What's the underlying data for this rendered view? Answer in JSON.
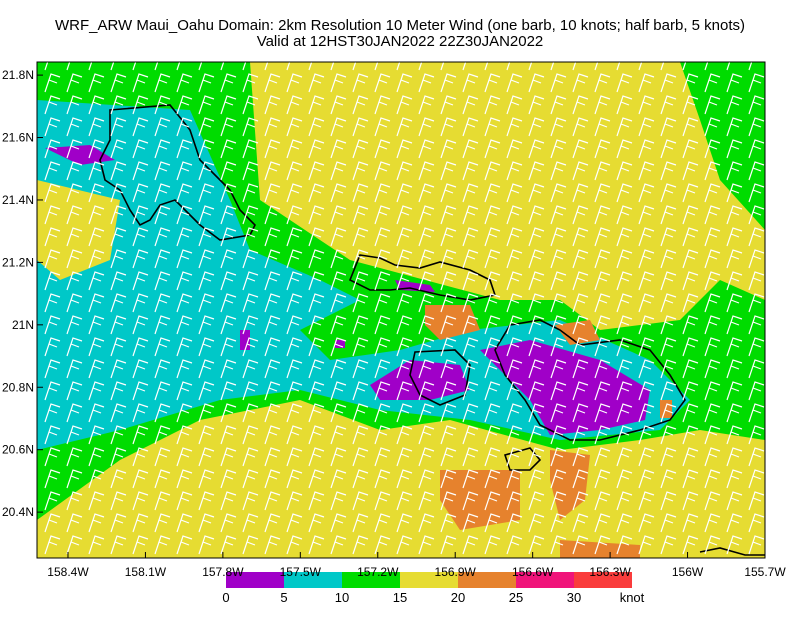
{
  "title": "WRF_ARW Maui_Oahu Domain: 2km Resolution  10 Meter Wind (one barb, 10 knots; half barb, 5 knots)",
  "subtitle": "Valid at 12HST30JAN2022  22Z30JAN2022",
  "xlim": [
    -158.52,
    -155.7
  ],
  "ylim": [
    20.253,
    21.842
  ],
  "xticks": [
    {
      "value": -158.4,
      "label": "158.4W"
    },
    {
      "value": -158.1,
      "label": "158.1W"
    },
    {
      "value": -157.8,
      "label": "157.8W"
    },
    {
      "value": -157.5,
      "label": "157.5W"
    },
    {
      "value": -157.2,
      "label": "157.2W"
    },
    {
      "value": -156.9,
      "label": "156.9W"
    },
    {
      "value": -156.6,
      "label": "156.6W"
    },
    {
      "value": -156.3,
      "label": "156.3W"
    },
    {
      "value": -156,
      "label": "156W"
    },
    {
      "value": -155.7,
      "label": "155.7W"
    }
  ],
  "yticks": [
    {
      "value": 20.4,
      "label": "20.4N"
    },
    {
      "value": 20.6,
      "label": "20.6N"
    },
    {
      "value": 20.8,
      "label": "20.8N"
    },
    {
      "value": 21,
      "label": "21N"
    },
    {
      "value": 21.2,
      "label": "21.2N"
    },
    {
      "value": 21.4,
      "label": "21.4N"
    },
    {
      "value": 21.6,
      "label": "21.6N"
    },
    {
      "value": 21.8,
      "label": "21.8N"
    }
  ],
  "colorbar": {
    "levels": [
      0,
      5,
      10,
      15,
      20,
      25,
      30
    ],
    "colors": [
      "#a000c8",
      "#00c8c8",
      "#00dc00",
      "#e6dc32",
      "#e6822d",
      "#f0147a",
      "#fa3c3c"
    ],
    "unit": "knot"
  }
}
